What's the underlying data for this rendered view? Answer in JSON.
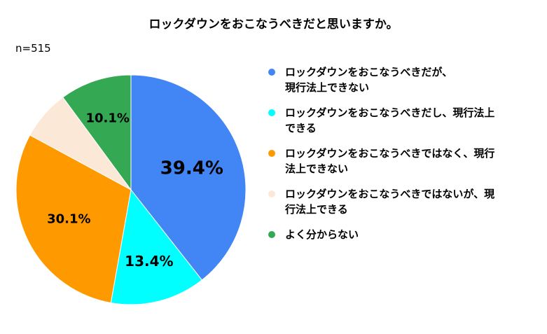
{
  "title": "ロックダウンをおこなうべきだと思いますか。",
  "sample_size": "n=515",
  "chart_data": {
    "type": "pie",
    "title": "ロックダウンをおこなうべきだと思いますか。",
    "start_angle_deg": 0,
    "direction": "clockwise",
    "slices": [
      {
        "label": "ロックダウンをおこなうべきだが、現行法上できない",
        "value": 39.4,
        "value_label": "39.4%",
        "color": "#4285F4"
      },
      {
        "label": "ロックダウンをおこなうべきだし、現行法上できる",
        "value": 13.4,
        "value_label": "13.4%",
        "color": "#00FFFF"
      },
      {
        "label": "ロックダウンをおこなうべきではなく、現行法上できない",
        "value": 30.1,
        "value_label": "30.1%",
        "color": "#FF9900"
      },
      {
        "label": "ロックダウンをおこなうべきではないが、現行法上できる",
        "value": 7.0,
        "value_label": "",
        "color": "#FCE8D7"
      },
      {
        "label": "よく分からない",
        "value": 10.1,
        "value_label": "10.1%",
        "color": "#34A853"
      }
    ],
    "legend_position": "right"
  },
  "legend": [
    {
      "line1": "ロックダウンをおこなうべきだが、",
      "line2": "現行法上できない",
      "color": "#4285F4"
    },
    {
      "line1": "ロックダウンをおこなうべきだし、現行法上",
      "line2": "できる",
      "color": "#00FFFF"
    },
    {
      "line1": "ロックダウンをおこなうべきではなく、現行",
      "line2": "法上できない",
      "color": "#FF9900"
    },
    {
      "line1": "ロックダウンをおこなうべきではないが、現",
      "line2": "行法上できる",
      "color": "#FCE8D7"
    },
    {
      "line1": "よく分からない",
      "line2": "",
      "color": "#34A853"
    }
  ]
}
